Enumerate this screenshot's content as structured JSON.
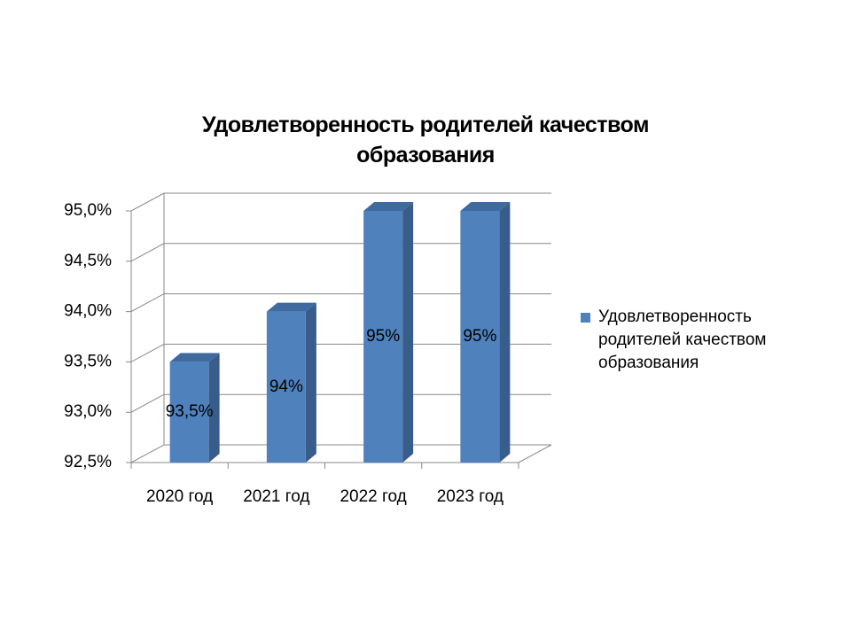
{
  "chart_data": {
    "type": "bar3d",
    "title": "Удовлетворенность родителей качеством образования",
    "categories": [
      "2020 год",
      "2021 год",
      "2022 год",
      "2023 год"
    ],
    "series": [
      {
        "name": "Удовлетворенность родителей качеством образования",
        "color": "#4f81bd",
        "values": [
          93.5,
          94,
          95,
          95
        ],
        "value_labels": [
          "93,5%",
          "94%",
          "95%",
          "95%"
        ]
      }
    ],
    "ylim": [
      92.5,
      95
    ],
    "yticks": [
      {
        "value": 92.5,
        "label": "92,5%"
      },
      {
        "value": 93,
        "label": "93,0%"
      },
      {
        "value": 93.5,
        "label": "93,5%"
      },
      {
        "value": 94,
        "label": "94,0%"
      },
      {
        "value": 94.5,
        "label": "94,5%"
      },
      {
        "value": 95,
        "label": "95,0%"
      }
    ],
    "grid": true,
    "legend": "right"
  }
}
